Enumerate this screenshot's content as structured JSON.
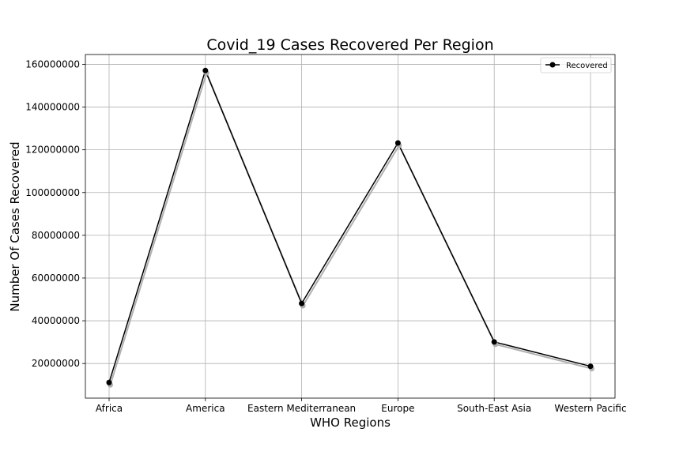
{
  "chart_data": {
    "type": "line",
    "title": "Covid_19 Cases Recovered Per Region",
    "xlabel": "WHO Regions",
    "ylabel": "Number Of Cases Recovered",
    "categories": [
      "Africa",
      "America",
      "Eastern Mediterranean",
      "Europe",
      "South-East Asia",
      "Western Pacific"
    ],
    "series": [
      {
        "name": "Recovered",
        "values": [
          11100000,
          157100000,
          48100000,
          123200000,
          30100000,
          18700000
        ],
        "color": "#000000",
        "marker": "circle"
      }
    ],
    "ylim": [
      3800000,
      164600000
    ],
    "yticks": [
      20000000,
      40000000,
      60000000,
      80000000,
      100000000,
      120000000,
      140000000,
      160000000
    ],
    "ytick_labels": [
      "20000000",
      "40000000",
      "60000000",
      "80000000",
      "100000000",
      "120000000",
      "140000000",
      "160000000"
    ],
    "grid": true,
    "legend_position": "top-right",
    "shadow_color": "#b0b0b0"
  }
}
